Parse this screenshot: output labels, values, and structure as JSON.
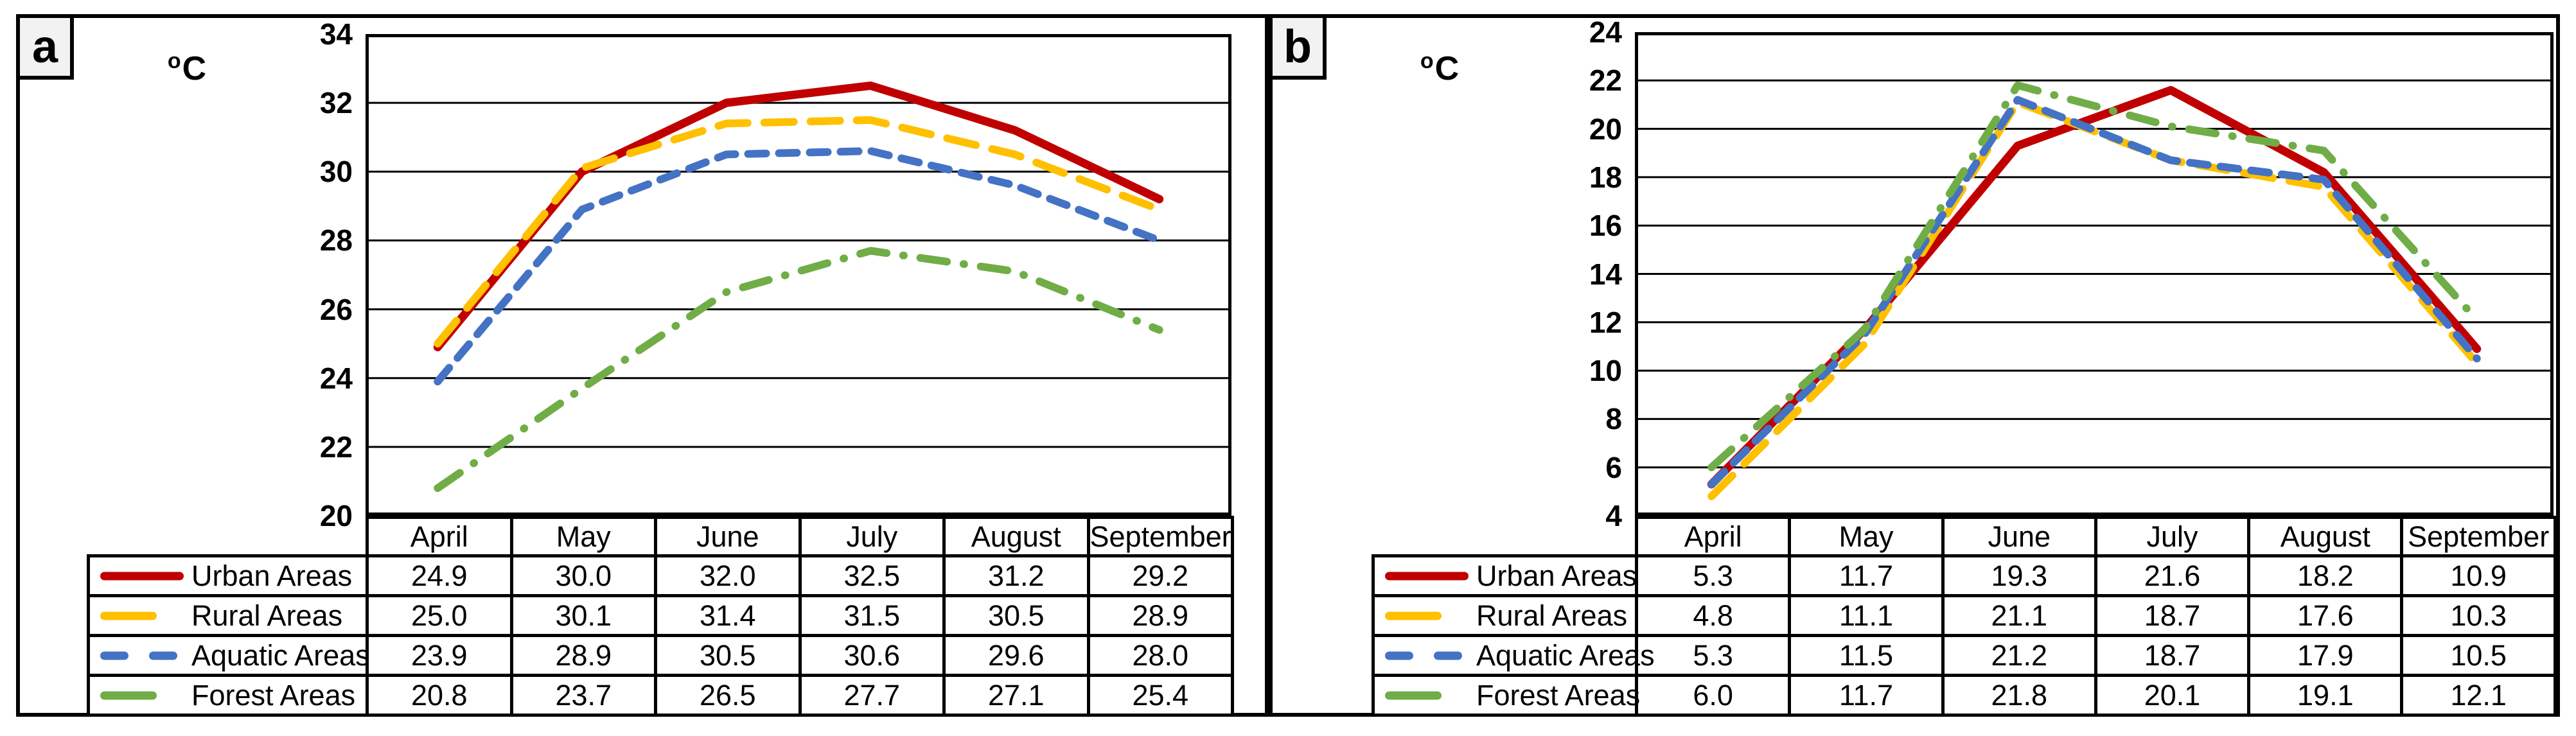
{
  "figure": {
    "background": "#ffffff",
    "line_color": "#000000",
    "label_box_bg": "#f2f2f2"
  },
  "chart_data": [
    {
      "panel_label": "a",
      "type": "line",
      "unit_sup": "o",
      "unit_main": "C",
      "ylabel": "°C",
      "categories": [
        "April",
        "May",
        "June",
        "July",
        "August",
        "September"
      ],
      "ylim": [
        20,
        34
      ],
      "ytick_step": 2,
      "grid": true,
      "legend_position": "table-left",
      "series": [
        {
          "name": "Urban Areas",
          "color": "#C00000",
          "dash": "solid",
          "values": [
            24.9,
            30.0,
            32.0,
            32.5,
            31.2,
            29.2
          ]
        },
        {
          "name": "Rural Areas",
          "color": "#FFC000",
          "dash": "long-dash",
          "values": [
            25.0,
            30.1,
            31.4,
            31.5,
            30.5,
            28.9
          ]
        },
        {
          "name": "Aquatic Areas",
          "color": "#4472C4",
          "dash": "dash",
          "values": [
            23.9,
            28.9,
            30.5,
            30.6,
            29.6,
            28.0
          ]
        },
        {
          "name": "Forest Areas",
          "color": "#70AD47",
          "dash": "dash-dot",
          "values": [
            20.8,
            23.7,
            26.5,
            27.7,
            27.1,
            25.4
          ]
        }
      ]
    },
    {
      "panel_label": "b",
      "type": "line",
      "unit_sup": "o",
      "unit_main": "C",
      "ylabel": "°C",
      "categories": [
        "April",
        "May",
        "June",
        "July",
        "August",
        "September"
      ],
      "ylim": [
        4,
        24
      ],
      "ytick_step": 2,
      "grid": true,
      "legend_position": "table-left",
      "series": [
        {
          "name": "Urban Areas",
          "color": "#C00000",
          "dash": "solid",
          "values": [
            5.3,
            11.7,
            19.3,
            21.6,
            18.2,
            10.9
          ]
        },
        {
          "name": "Rural Areas",
          "color": "#FFC000",
          "dash": "long-dash",
          "values": [
            4.8,
            11.1,
            21.1,
            18.7,
            17.6,
            10.3
          ]
        },
        {
          "name": "Aquatic Areas",
          "color": "#4472C4",
          "dash": "dash",
          "values": [
            5.3,
            11.5,
            21.2,
            18.7,
            17.9,
            10.5
          ]
        },
        {
          "name": "Forest Areas",
          "color": "#70AD47",
          "dash": "dash-dot",
          "values": [
            6.0,
            11.7,
            21.8,
            20.1,
            19.1,
            12.1
          ]
        }
      ]
    }
  ]
}
